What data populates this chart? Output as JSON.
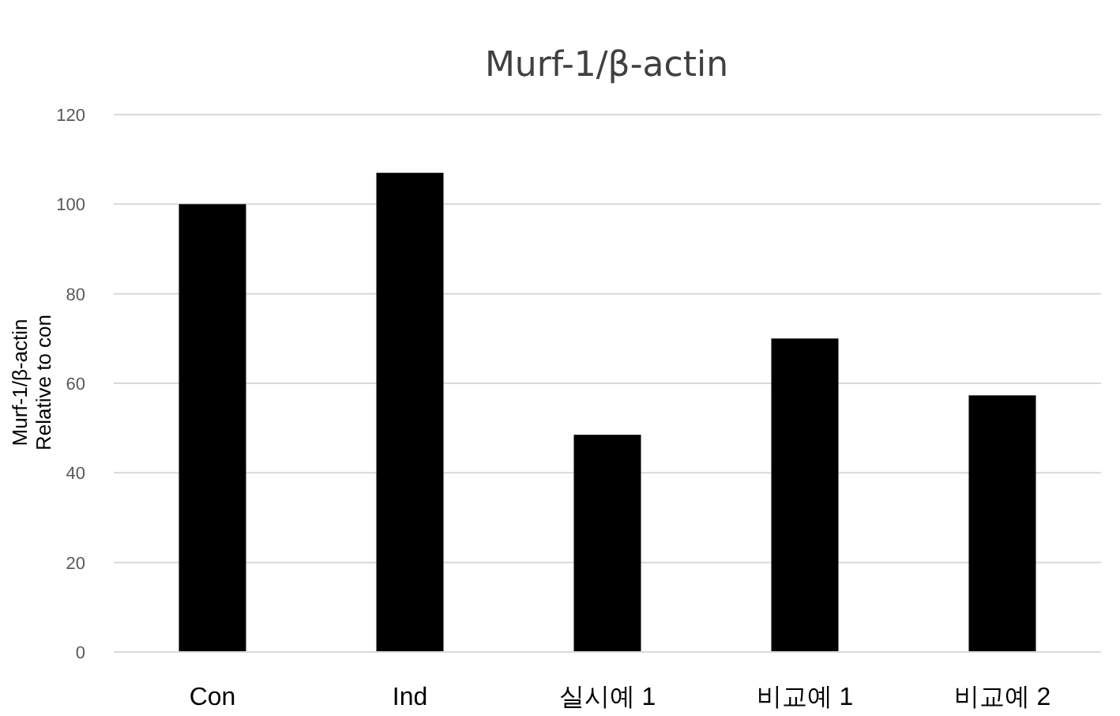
{
  "chart_data": {
    "type": "bar",
    "title": "Murf-1/β-actin",
    "ylabel": "Murf-1/β-actin Relative to con",
    "categories": [
      "Con",
      "Ind",
      "실시예 1",
      "비교예 1",
      "비교예 2"
    ],
    "values": [
      100,
      107,
      48.5,
      70,
      57.3
    ],
    "color": "#000000",
    "ylim": [
      0,
      120
    ],
    "yticks": [
      0,
      20,
      40,
      60,
      80,
      100,
      120
    ],
    "grid": "y"
  }
}
